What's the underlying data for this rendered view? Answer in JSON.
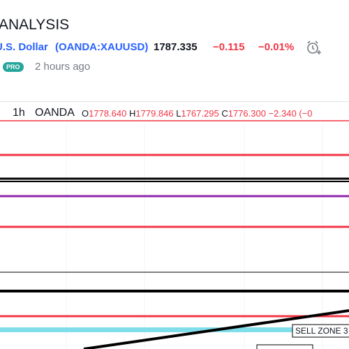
{
  "header": {
    "title": "ANALYSIS"
  },
  "symbol": {
    "name": "U.S. Dollar",
    "ticker": "(OANDA:XAUUSD)"
  },
  "quote": {
    "price": "1787.335",
    "change": "−0.115",
    "change_percent": "−0.01%"
  },
  "meta": {
    "badge": "PRO",
    "time": "2 hours ago"
  },
  "chart_header": {
    "interval": "1h",
    "exchange": "OANDA",
    "ohlc": [
      {
        "label": "O",
        "value": "1778.640"
      },
      {
        "label": "H",
        "value": "1779.846"
      },
      {
        "label": "L",
        "value": "1767.295"
      },
      {
        "label": "C",
        "value": "1776.300"
      }
    ],
    "change": "−2.340 (−0"
  },
  "annotations": [
    "SELL ZONE 3"
  ]
}
